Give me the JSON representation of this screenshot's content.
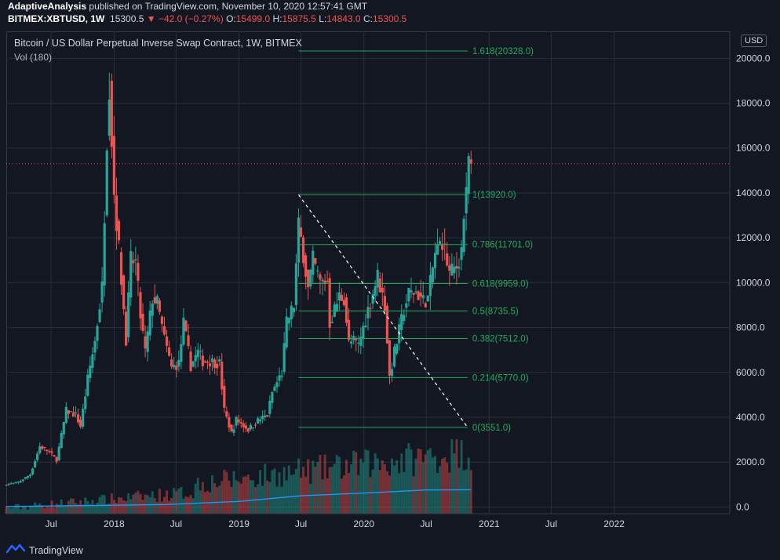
{
  "header": {
    "author": "AdaptiveAnalysis",
    "published": "published on TradingView.com, November 10, 2020 12:57:41 GMT",
    "symbol": "BITMEX:XBTUSD, 1W",
    "last": "15300.5",
    "change": "−42.0 (−0.27%)",
    "o_label": "O:",
    "o_value": "15499.0",
    "h_label": "H:",
    "h_value": "15875.5",
    "l_label": "L:",
    "l_value": "14843.0",
    "c_label": "C:",
    "c_value": "15300.5"
  },
  "legend": {
    "title": "Bitcoin / US Dollar Perpetual Inverse Swap Contract, 1W, BITMEX",
    "volume": "Vol (180)"
  },
  "currency_badge": "USD",
  "footer": {
    "brand": "TradingView"
  },
  "colors": {
    "background": "#131722",
    "grid": "#2a2e39",
    "up": "#26a69a",
    "down": "#ef5350",
    "fib": "#26a65b",
    "fib_text": "#22ab5e",
    "volume_ma": "#2196f3",
    "price_line": "#ef5350",
    "trendline": "#ffffff",
    "axis_text": "#d1d4dc"
  },
  "chart_data": {
    "type": "candlestick",
    "ylim": [
      -300,
      21200
    ],
    "xlim": [
      "2017-02-20",
      "2022-12-05"
    ],
    "grid": true,
    "y_ticks": [
      0,
      2000,
      4000,
      6000,
      8000,
      10000,
      12000,
      14000,
      16000,
      18000,
      20000
    ],
    "y_tick_labels": [
      "0.0",
      "2000.0",
      "4000.0",
      "6000.0",
      "8000.0",
      "10000.0",
      "12000.0",
      "14000.0",
      "16000.0",
      "18000.0",
      "20000.0"
    ],
    "y_top_partial_label": "2",
    "x_ticks": [
      {
        "date": "2017-07-01",
        "label": "Jul"
      },
      {
        "date": "2018-01-01",
        "label": "2018"
      },
      {
        "date": "2018-07-01",
        "label": "Jul"
      },
      {
        "date": "2019-01-01",
        "label": "2019"
      },
      {
        "date": "2019-07-01",
        "label": "Jul"
      },
      {
        "date": "2020-01-01",
        "label": "2020"
      },
      {
        "date": "2020-07-01",
        "label": "Jul"
      },
      {
        "date": "2021-01-01",
        "label": "2021"
      },
      {
        "date": "2021-07-01",
        "label": "Jul"
      },
      {
        "date": "2022-01-01",
        "label": "2022"
      }
    ],
    "last_price": 15300.5,
    "price_path": [
      [
        "2017-02-20",
        1000
      ],
      [
        "2017-03-27",
        1100
      ],
      [
        "2017-05-01",
        1450
      ],
      [
        "2017-05-29",
        2700
      ],
      [
        "2017-06-26",
        2450
      ],
      [
        "2017-07-17",
        2100
      ],
      [
        "2017-08-14",
        4300
      ],
      [
        "2017-09-11",
        4100
      ],
      [
        "2017-09-25",
        3600
      ],
      [
        "2017-10-16",
        5700
      ],
      [
        "2017-11-06",
        7400
      ],
      [
        "2017-11-27",
        9800
      ],
      [
        "2017-12-11",
        16500
      ],
      [
        "2017-12-18",
        18900
      ],
      [
        "2018-01-01",
        14000
      ],
      [
        "2018-01-15",
        11500
      ],
      [
        "2018-02-05",
        7500
      ],
      [
        "2018-02-19",
        11000
      ],
      [
        "2018-03-05",
        10900
      ],
      [
        "2018-03-19",
        8500
      ],
      [
        "2018-04-02",
        6900
      ],
      [
        "2018-04-23",
        9300
      ],
      [
        "2018-05-07",
        9100
      ],
      [
        "2018-05-28",
        7500
      ],
      [
        "2018-06-18",
        6200
      ],
      [
        "2018-07-09",
        6400
      ],
      [
        "2018-07-23",
        8200
      ],
      [
        "2018-08-13",
        6300
      ],
      [
        "2018-09-03",
        6900
      ],
      [
        "2018-09-17",
        6500
      ],
      [
        "2018-10-08",
        6500
      ],
      [
        "2018-11-05",
        6400
      ],
      [
        "2018-11-19",
        4300
      ],
      [
        "2018-12-10",
        3300
      ],
      [
        "2018-12-24",
        3900
      ],
      [
        "2019-01-28",
        3450
      ],
      [
        "2019-02-25",
        3850
      ],
      [
        "2019-03-25",
        4100
      ],
      [
        "2019-04-08",
        5100
      ],
      [
        "2019-05-06",
        6000
      ],
      [
        "2019-05-20",
        8200
      ],
      [
        "2019-06-10",
        9000
      ],
      [
        "2019-06-24",
        12500
      ],
      [
        "2019-07-08",
        11300
      ],
      [
        "2019-07-22",
        9700
      ],
      [
        "2019-08-05",
        11000
      ],
      [
        "2019-08-26",
        10000
      ],
      [
        "2019-09-16",
        10100
      ],
      [
        "2019-09-23",
        8200
      ],
      [
        "2019-10-21",
        9400
      ],
      [
        "2019-11-04",
        9300
      ],
      [
        "2019-11-18",
        7300
      ],
      [
        "2019-12-02",
        7400
      ],
      [
        "2019-12-16",
        7200
      ],
      [
        "2020-01-13",
        8800
      ],
      [
        "2020-02-10",
        10300
      ],
      [
        "2020-03-02",
        9000
      ],
      [
        "2020-03-16",
        5800
      ],
      [
        "2020-03-30",
        6900
      ],
      [
        "2020-04-27",
        8800
      ],
      [
        "2020-05-11",
        9500
      ],
      [
        "2020-06-01",
        9600
      ],
      [
        "2020-06-22",
        9200
      ],
      [
        "2020-07-06",
        9300
      ],
      [
        "2020-07-27",
        11300
      ],
      [
        "2020-08-17",
        11900
      ],
      [
        "2020-09-07",
        10400
      ],
      [
        "2020-09-28",
        10700
      ],
      [
        "2020-10-12",
        11500
      ],
      [
        "2020-10-19",
        13000
      ],
      [
        "2020-10-26",
        13800
      ],
      [
        "2020-11-02",
        15500
      ],
      [
        "2020-11-09",
        15300
      ]
    ],
    "volume_ma_path": [
      [
        "2017-02-20",
        20
      ],
      [
        "2017-10-01",
        60
      ],
      [
        "2018-06-01",
        110
      ],
      [
        "2019-01-01",
        250
      ],
      [
        "2019-07-01",
        500
      ],
      [
        "2020-01-01",
        620
      ],
      [
        "2020-07-01",
        760
      ],
      [
        "2020-11-09",
        770
      ]
    ],
    "fibonacci": {
      "start_date": "2019-06-24",
      "end_date": "2020-10-30",
      "levels": [
        {
          "label": "1.618(20328.0)",
          "value": 20328
        },
        {
          "label": "1(13920.0)",
          "value": 13920
        },
        {
          "label": "0.786(11701.0)",
          "value": 11701
        },
        {
          "label": "0.618(9959.0)",
          "value": 9959
        },
        {
          "label": "0.5(8735.5)",
          "value": 8735.5
        },
        {
          "label": "0.382(7512.0)",
          "value": 7512
        },
        {
          "label": "0.214(5770.0)",
          "value": 5770
        },
        {
          "label": "0(3551.0)",
          "value": 3551
        }
      ]
    },
    "trendline": {
      "from": [
        "2019-06-24",
        13920
      ],
      "to": [
        "2020-10-30",
        3551
      ]
    }
  }
}
